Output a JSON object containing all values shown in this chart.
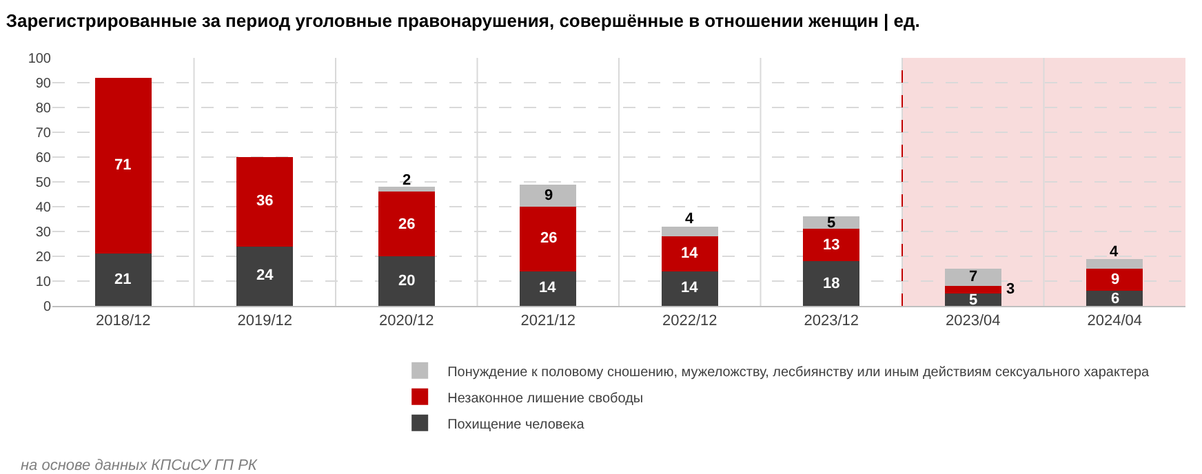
{
  "chart_data": {
    "type": "bar",
    "stacked": true,
    "title": "Зарегистрированные за период уголовные правонарушения, совершённые в отношении женщин | ед.",
    "categories": [
      "2018/12",
      "2019/12",
      "2020/12",
      "2021/12",
      "2022/12",
      "2023/12",
      "2023/04",
      "2024/04"
    ],
    "series": [
      {
        "name": "Похищение человека",
        "color": "#404040",
        "values": [
          21,
          24,
          20,
          14,
          14,
          18,
          5,
          6
        ]
      },
      {
        "name": "Незаконное лишение свободы",
        "color": "#c00000",
        "values": [
          71,
          36,
          26,
          26,
          14,
          13,
          3,
          9
        ]
      },
      {
        "name": "Понуждение к половому сношению, мужеложству, лесбиянству или иным действиям сексуального характера",
        "color": "#bdbdbd",
        "values": [
          null,
          null,
          2,
          9,
          4,
          5,
          7,
          4
        ]
      }
    ],
    "ylim": [
      0,
      100
    ],
    "yticks": [
      0,
      10,
      20,
      30,
      40,
      50,
      60,
      70,
      80,
      90,
      100
    ],
    "bands": [
      {
        "axis": "x",
        "from": "2023/04",
        "to": "2024/04",
        "color": "#f8dcdc"
      }
    ],
    "ref_lines": [
      {
        "axis": "x",
        "value": "2023/04",
        "color": "#c00000",
        "line_style": "dashed"
      }
    ],
    "grid": true,
    "legend": "bottom",
    "data_labels": true,
    "annotations": [
      "на основе данных КПСиСУ ГП РК"
    ]
  }
}
